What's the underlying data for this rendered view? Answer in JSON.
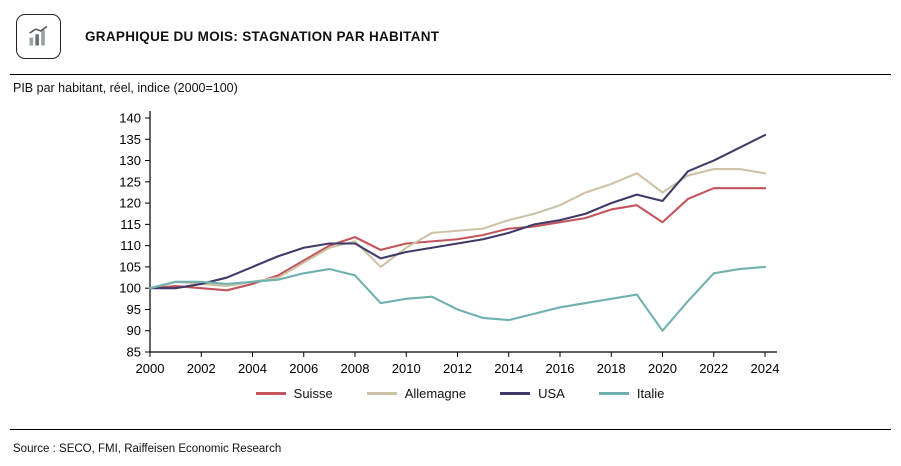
{
  "header": {
    "title": "GRAPHIQUE DU MOIS: STAGNATION PAR HABITANT",
    "icon": "bar-chart-icon"
  },
  "subtitle": "PIB par habitant, réel, indice (2000=100)",
  "source": "Source : SECO, FMI, Raiffeisen Economic Research",
  "chart_data": {
    "type": "line",
    "title": "PIB par habitant, réel, indice (2000=100)",
    "x": [
      2000,
      2001,
      2002,
      2003,
      2004,
      2005,
      2006,
      2007,
      2008,
      2009,
      2010,
      2011,
      2012,
      2013,
      2014,
      2015,
      2016,
      2017,
      2018,
      2019,
      2020,
      2021,
      2022,
      2023,
      2024
    ],
    "xticks": [
      2000,
      2002,
      2004,
      2006,
      2008,
      2010,
      2012,
      2014,
      2016,
      2018,
      2020,
      2022,
      2024
    ],
    "ylim": [
      85,
      140
    ],
    "ytick_step": 5,
    "grid": false,
    "legend_position": "bottom",
    "series": [
      {
        "name": "Suisse",
        "color": "#c2555c",
        "values": [
          100,
          100.5,
          100,
          99.5,
          101,
          103,
          106.5,
          110,
          112,
          109,
          110.5,
          111,
          111.5,
          112.5,
          114,
          114.5,
          115.5,
          116.5,
          118.5,
          119.5,
          115.5,
          121,
          123.5,
          123.5,
          123.5
        ]
      },
      {
        "name": "Allemagne",
        "color": "#cec2a6",
        "values": [
          100,
          101.5,
          101,
          100.5,
          101.5,
          102.5,
          106,
          109.5,
          111,
          105,
          109.5,
          113,
          113.5,
          114,
          116,
          117.5,
          119.5,
          122.5,
          124.5,
          127,
          122.5,
          126.5,
          128,
          128,
          127
        ]
      },
      {
        "name": "USA",
        "color": "#413968",
        "values": [
          100,
          100,
          101,
          102.5,
          105,
          107.5,
          109.5,
          110.5,
          110.5,
          107,
          108.5,
          109.5,
          110.5,
          111.5,
          113,
          115,
          116,
          117.5,
          120,
          122,
          120.5,
          127.5,
          130,
          133,
          136
        ]
      },
      {
        "name": "Italie",
        "color": "#70b1b0",
        "values": [
          100,
          101.5,
          101.5,
          101,
          101.5,
          102,
          103.5,
          104.5,
          103,
          96.5,
          97.5,
          98,
          95,
          93,
          92.5,
          94,
          95.5,
          96.5,
          97.5,
          98.5,
          90,
          97,
          103.5,
          104.5,
          105
        ]
      }
    ]
  }
}
